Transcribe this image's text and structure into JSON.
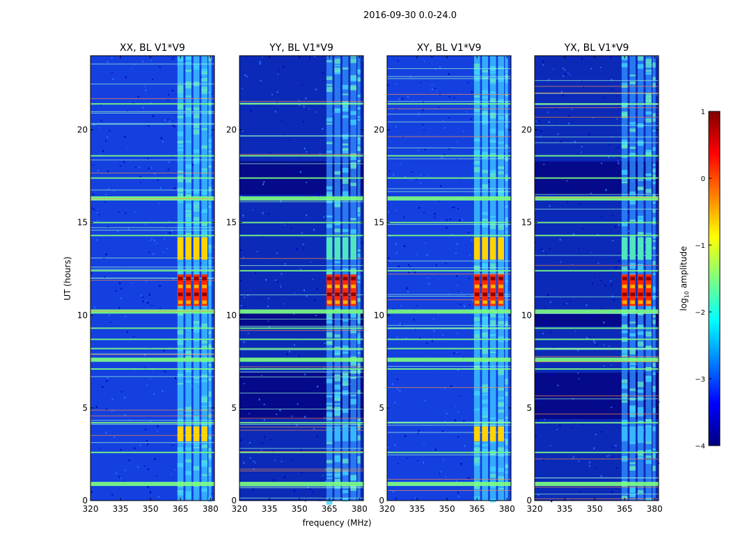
{
  "figure_title": "2016-09-30 0.0-24.0",
  "chart_data": {
    "type": "heatmap",
    "title": "2016-09-30 0.0-24.0",
    "xlabel": "frequency (MHz)",
    "ylabel": "UT (hours)",
    "xlim": [
      320,
      382
    ],
    "ylim": [
      0,
      24
    ],
    "x_ticks": [
      320,
      335,
      350,
      365,
      380
    ],
    "y_ticks": [
      0,
      5,
      10,
      15,
      20
    ],
    "panels": [
      {
        "title": "XX, BL V1*V9"
      },
      {
        "title": "YY, BL V1*V9"
      },
      {
        "title": "XY, BL V1*V9"
      },
      {
        "title": "YX, BL V1*V9"
      }
    ],
    "colorbar": {
      "label": "log10 amplitude",
      "label_main": "log",
      "label_sub": "10",
      "label_tail": " amplitude",
      "range": [
        -4,
        1
      ],
      "ticks": [
        "1",
        "0",
        "−1",
        "−2",
        "−3",
        "−4"
      ],
      "colormap": "jet",
      "colormap_stops": [
        "#00007f",
        "#0000ff",
        "#007fff",
        "#00ffff",
        "#7fff7f",
        "#ffff00",
        "#ff7f00",
        "#ff0000",
        "#7f0000"
      ]
    },
    "rfi_bands_mhz": [
      [
        363.5,
        366.5
      ],
      [
        367.5,
        370.5
      ],
      [
        371.5,
        374.5
      ],
      [
        375.5,
        378.5
      ],
      [
        379,
        380.5
      ]
    ],
    "strong_rfi_hours": [
      [
        10.5,
        12.2
      ],
      [
        13,
        14.2
      ],
      [
        3.2,
        4
      ]
    ],
    "horizontal_rfi_hours": [
      0.9,
      2.6,
      4.2,
      7.1,
      7.6,
      8.2,
      8.7,
      9.3,
      10.2,
      12.4,
      14.3,
      15.0,
      16.3,
      17.4,
      18.6,
      21.4
    ]
  }
}
